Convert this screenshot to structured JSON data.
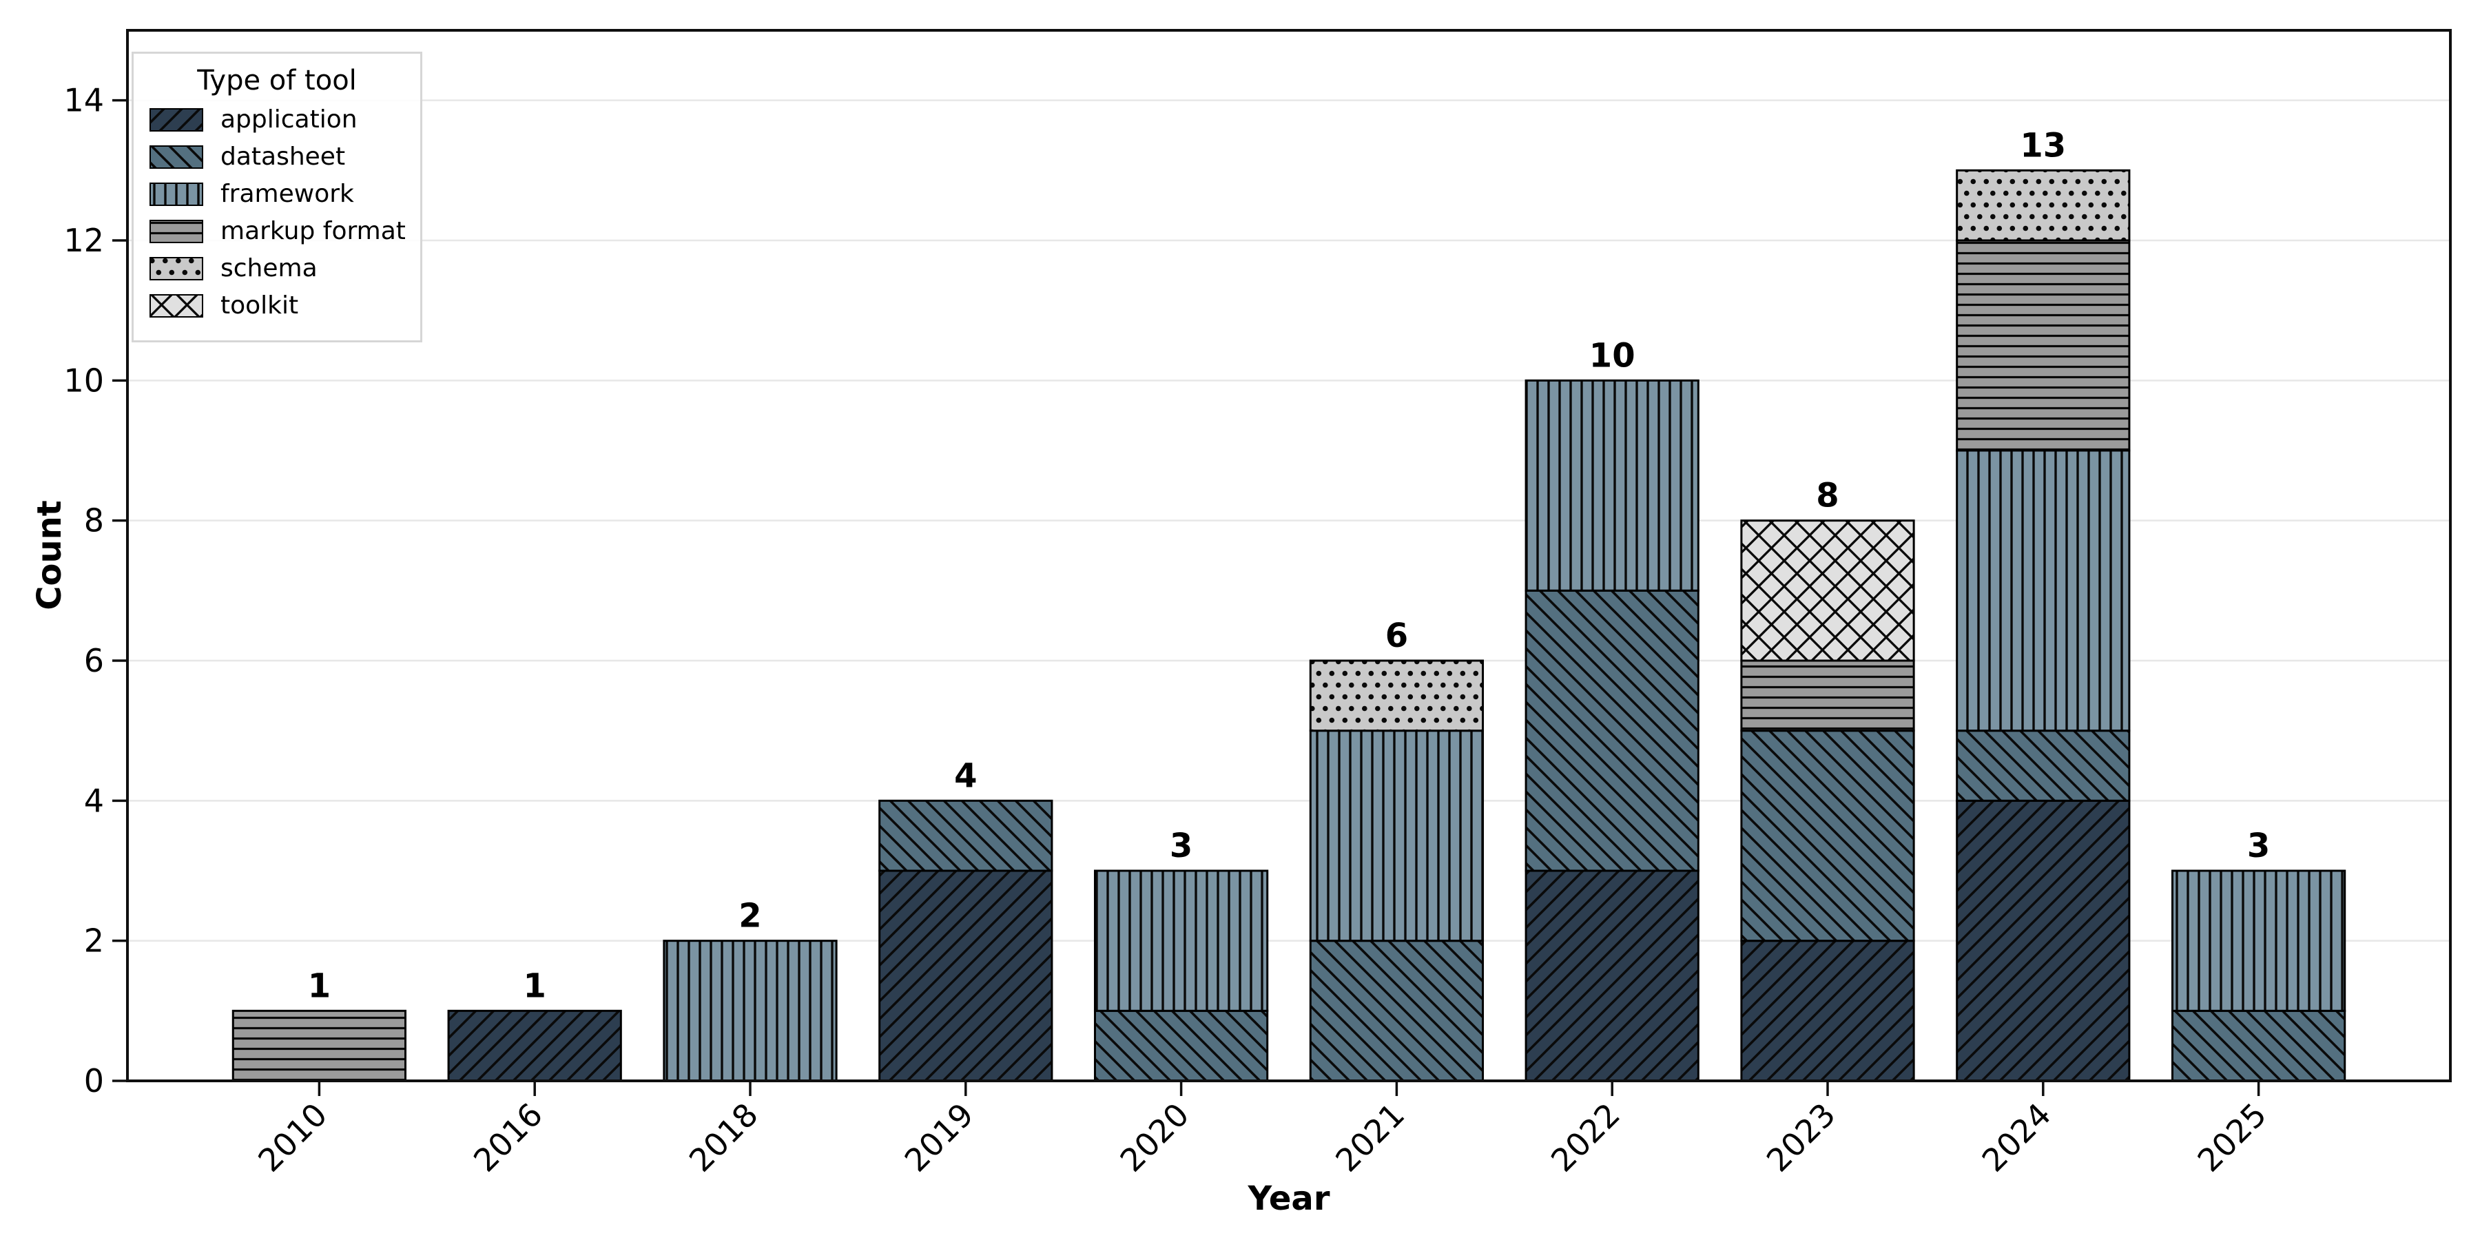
{
  "figure": {
    "background": "#ffffff"
  },
  "axes": {
    "xlabel": "Year",
    "ylabel": "Count",
    "y_ticks": [
      0,
      2,
      4,
      6,
      8,
      10,
      12,
      14
    ],
    "grid": "horizontal",
    "grid_color": "#e7e7e7",
    "spine_color": "#0f0f0f",
    "tick_label_color": "#000000"
  },
  "legend": {
    "title": "Type of tool",
    "position": "upper-left"
  },
  "chart_data": {
    "type": "bar",
    "stacked": true,
    "title": "",
    "xlabel": "Year",
    "ylabel": "Count",
    "legend_title": "Type of tool",
    "legend_position": "upper left",
    "grid": "horizontal",
    "bar_labels": true,
    "ylim": [
      0,
      15
    ],
    "y_ticks": [
      0,
      2,
      4,
      6,
      8,
      10,
      12,
      14
    ],
    "categories": [
      "2010",
      "2016",
      "2018",
      "2019",
      "2020",
      "2021",
      "2022",
      "2023",
      "2024",
      "2025"
    ],
    "series": [
      {
        "name": "application",
        "color": "#2d3e50",
        "hatch": "/",
        "values": [
          0,
          1,
          0,
          3,
          0,
          0,
          3,
          2,
          4,
          0
        ]
      },
      {
        "name": "datasheet",
        "color": "#547080",
        "hatch": "\\",
        "values": [
          0,
          0,
          0,
          1,
          1,
          2,
          4,
          3,
          1,
          1
        ]
      },
      {
        "name": "framework",
        "color": "#7b94a3",
        "hatch": "|",
        "values": [
          0,
          0,
          2,
          0,
          2,
          3,
          3,
          0,
          4,
          2
        ]
      },
      {
        "name": "markup format",
        "color": "#9b9b9b",
        "hatch": "-",
        "values": [
          1,
          0,
          0,
          0,
          0,
          0,
          0,
          1,
          3,
          0
        ]
      },
      {
        "name": "schema",
        "color": "#c9c9c9",
        "hatch": ".",
        "values": [
          0,
          0,
          0,
          0,
          0,
          1,
          0,
          0,
          1,
          0
        ]
      },
      {
        "name": "toolkit",
        "color": "#e0e0e0",
        "hatch": "x",
        "values": [
          0,
          0,
          0,
          0,
          0,
          0,
          0,
          2,
          0,
          0
        ]
      }
    ],
    "totals": [
      1,
      1,
      2,
      4,
      3,
      6,
      10,
      8,
      13,
      3
    ]
  }
}
